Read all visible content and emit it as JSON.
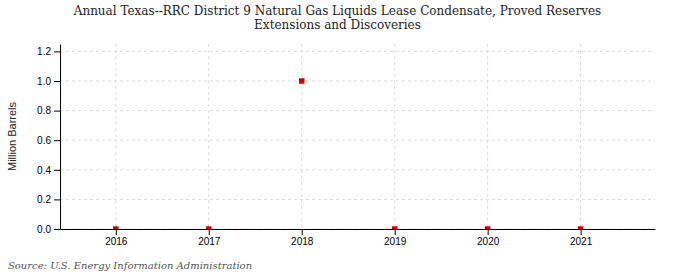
{
  "chart_data": {
    "type": "scatter",
    "title": "Annual Texas--RRC District 9 Natural Gas Liquids Lease Condensate, Proved Reserves\nExtensions and Discoveries",
    "ylabel": "Million Barrels",
    "source": "Source: U.S. Energy Information Administration",
    "x": [
      2016,
      2017,
      2018,
      2019,
      2020,
      2021
    ],
    "values": [
      0.0,
      0.0,
      1.0,
      0.0,
      0.0,
      0.0
    ],
    "color": "#cc0000",
    "marker": "square",
    "xlim": [
      2015.4,
      2021.8
    ],
    "xticks": [
      2016,
      2017,
      2018,
      2019,
      2020,
      2021
    ],
    "ylim": [
      0.0,
      1.25
    ],
    "yticks": [
      {
        "value": 0.0,
        "label": "0.0"
      },
      0.2,
      0.4,
      0.6,
      0.8,
      {
        "value": 1.0,
        "label": "1.0"
      },
      1.2
    ],
    "grid": true
  }
}
